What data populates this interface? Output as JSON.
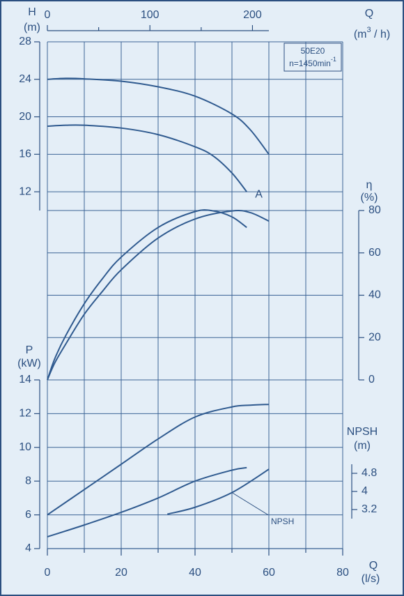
{
  "chart_data": {
    "type": "line",
    "model": "50E20",
    "speed": {
      "text": "n=1450min",
      "sup": "-1"
    },
    "grid": true,
    "x_axis": {
      "label": "Q",
      "unit": "(l/s)",
      "xlim": [
        0,
        80
      ],
      "xticks": [
        0,
        20,
        40,
        60,
        80
      ],
      "minor_xticks": [
        10,
        30,
        50,
        70
      ]
    },
    "top_axis": {
      "label": "Q",
      "unit": "(m",
      "unit_sup": "3",
      "unit_tail": " / h)",
      "xlim": [
        0,
        216
      ],
      "xticks": [
        0,
        100,
        200
      ],
      "minor_xticks": [
        50,
        150
      ]
    },
    "panels": [
      {
        "type": "line",
        "ylabel": "H",
        "yunit": "(m)",
        "side": "left",
        "ylim": [
          10,
          28
        ],
        "yticks": [
          12,
          16,
          20,
          24,
          28
        ],
        "series": [
          {
            "color": "#2f5a8f",
            "x": [
              0,
              5,
              10,
              20,
              30,
              40,
              50,
              55,
              60
            ],
            "values": [
              24.0,
              24.1,
              24.05,
              23.8,
              23.2,
              22.2,
              20.3,
              18.6,
              16.0
            ]
          },
          {
            "name": "A",
            "color": "#2f5a8f",
            "x": [
              0,
              5,
              10,
              20,
              30,
              40,
              45,
              50,
              54
            ],
            "values": [
              19.0,
              19.1,
              19.1,
              18.8,
              18.1,
              16.8,
              15.8,
              14.0,
              12.0
            ]
          }
        ]
      },
      {
        "type": "line",
        "ylabel": "η",
        "yunit": "(%)",
        "side": "right",
        "ylim": [
          0,
          80
        ],
        "yticks": [
          0,
          20,
          40,
          60,
          80
        ],
        "series": [
          {
            "color": "#2f5a8f",
            "x": [
              0,
              2,
              5,
              10,
              15,
              20,
              30,
              40,
              45,
              50,
              54
            ],
            "values": [
              0,
              10,
              21,
              36,
              48,
              58,
              72,
              79.5,
              79.8,
              77,
              72
            ]
          },
          {
            "color": "#2f5a8f",
            "x": [
              0,
              2,
              5,
              10,
              15,
              20,
              30,
              40,
              50,
              55,
              60
            ],
            "values": [
              0,
              8,
              17,
              31,
              42,
              52,
              67,
              76,
              79.8,
              79,
              75
            ]
          }
        ]
      },
      {
        "type": "line",
        "ylabel": "P",
        "yunit": "(kW)",
        "side": "left",
        "ylim": [
          4,
          14
        ],
        "yticks": [
          4,
          6,
          8,
          10,
          12,
          14
        ],
        "series": [
          {
            "color": "#2f5a8f",
            "x": [
              0,
              10,
              20,
              30,
              40,
              50,
              55,
              60
            ],
            "values": [
              6.0,
              7.5,
              9.0,
              10.5,
              11.8,
              12.4,
              12.5,
              12.55
            ]
          },
          {
            "color": "#2f5a8f",
            "x": [
              0,
              10,
              20,
              30,
              40,
              50,
              54
            ],
            "values": [
              4.7,
              5.4,
              6.15,
              7.0,
              8.0,
              8.65,
              8.8
            ]
          }
        ]
      },
      {
        "type": "line",
        "ylabel": "NPSH",
        "yunit": "(m)",
        "side": "right",
        "ylim": [
          2.8,
          5.2
        ],
        "yticks": [
          3.2,
          4,
          4.8
        ],
        "series": [
          {
            "name": "NPSH",
            "color": "#2f5a8f",
            "x": [
              32.5,
              40,
              50,
              60
            ],
            "values": [
              3.0,
              3.3,
              3.95,
              4.98
            ]
          }
        ]
      }
    ]
  }
}
